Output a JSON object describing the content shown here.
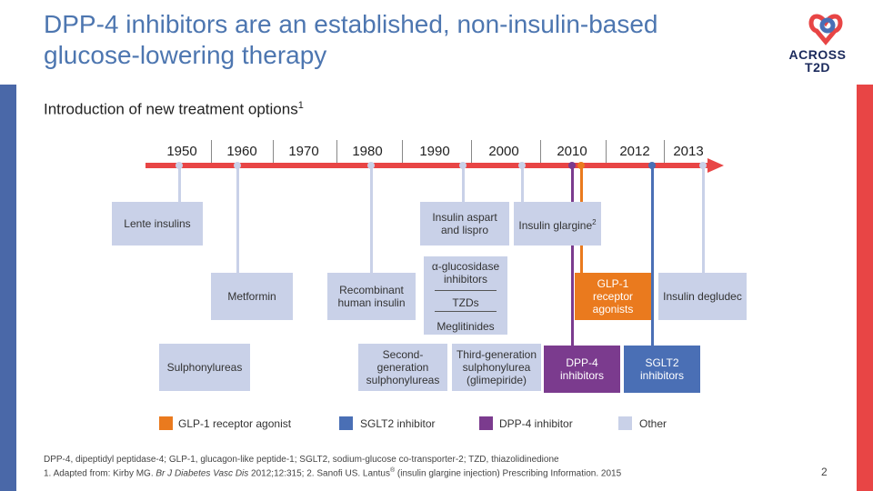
{
  "title_line1": "DPP-4 inhibitors are an established, non-insulin-based",
  "title_line2": "glucose-lowering therapy",
  "logo": {
    "line1": "ACROSS",
    "line2": "T2D"
  },
  "subtitle": "Introduction of new treatment options",
  "subtitle_sup": "1",
  "years": [
    "1950",
    "1960",
    "1970",
    "1980",
    "1990",
    "2000",
    "2010",
    "2012",
    "2013"
  ],
  "boxes": {
    "lente": "Lente insulins",
    "aspart": "Insulin aspart and lispro",
    "glargine": "Insulin glargine",
    "glargine_sup": "2",
    "metformin": "Metformin",
    "recombinant": "Recombinant human insulin",
    "alpha": "α-glucosidase inhibitors",
    "tzds": "TZDs",
    "meglitinides": "Meglitinides",
    "glp1": "GLP-1 receptor agonists",
    "degludec": "Insulin degludec",
    "sulphonylureas": "Sulphonylureas",
    "second_gen": "Second-generation sulphonylureas",
    "third_gen": "Third-generation sulphonylurea (glimepiride)",
    "dpp4": "DPP-4 inhibitors",
    "sglt2": "SGLT2 inhibitors"
  },
  "legend": {
    "glp1": "GLP-1 receptor agonist",
    "sglt2": "SGLT2 inhibitor",
    "dpp4": "DPP-4 inhibitor",
    "other": "Other"
  },
  "colors": {
    "glp1": "#ea7a1e",
    "sglt2": "#4a6fb5",
    "dpp4": "#7b3b8e",
    "other": "#c9d1e8",
    "timeline": "#e84545"
  },
  "footer_line1": "DPP-4, dipeptidyl peptidase-4; GLP-1, glucagon-like peptide-1; SGLT2, sodium-glucose co-transporter-2; TZD, thiazolidinedione",
  "footer_line2_a": "1. Adapted from: Kirby MG. ",
  "footer_line2_journal": "Br J Diabetes Vasc Dis",
  "footer_line2_b": " 2012;12:315; 2. Sanofi US. Lantus",
  "footer_line2_reg": "®",
  "footer_line2_c": " (insulin glargine injection) Prescribing Information. 2015",
  "page_number": "2"
}
